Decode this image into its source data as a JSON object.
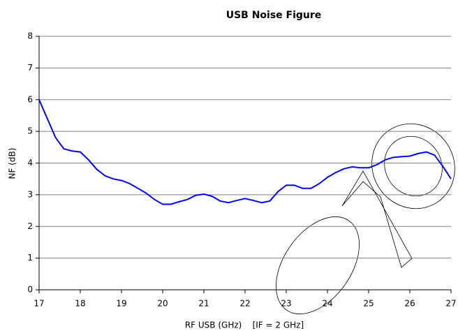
{
  "chart_data": {
    "type": "line",
    "title": "USB Noise Figure",
    "x_label": "RF USB (GHz)    [IF = 2 GHz]",
    "y_label": "NF (dB)",
    "xlim": [
      17,
      27
    ],
    "xticks": [
      17,
      18,
      19,
      20,
      21,
      22,
      23,
      24,
      25,
      26,
      27
    ],
    "ylim": [
      0,
      8
    ],
    "yticks": [
      0,
      1,
      2,
      3,
      4,
      5,
      6,
      7,
      8
    ],
    "grid": true,
    "series": [
      {
        "color": "#0000ff",
        "x": [
          17.0,
          17.2,
          17.4,
          17.6,
          17.8,
          18.0,
          18.2,
          18.4,
          18.6,
          18.8,
          19.0,
          19.2,
          19.4,
          19.6,
          19.8,
          20.0,
          20.2,
          20.4,
          20.6,
          20.8,
          21.0,
          21.2,
          21.4,
          21.6,
          21.8,
          22.0,
          22.2,
          22.4,
          22.6,
          22.8,
          23.0,
          23.2,
          23.4,
          23.6,
          23.8,
          24.0,
          24.2,
          24.4,
          24.6,
          24.8,
          25.0,
          25.2,
          25.4,
          25.6,
          25.8,
          26.0,
          26.2,
          26.4,
          26.6,
          26.8,
          27.0
        ],
        "values": [
          6.0,
          5.4,
          4.8,
          4.45,
          4.38,
          4.35,
          4.1,
          3.8,
          3.6,
          3.5,
          3.45,
          3.35,
          3.2,
          3.05,
          2.85,
          2.7,
          2.7,
          2.78,
          2.85,
          2.98,
          3.02,
          2.95,
          2.8,
          2.75,
          2.82,
          2.88,
          2.82,
          2.75,
          2.8,
          3.1,
          3.3,
          3.3,
          3.2,
          3.2,
          3.35,
          3.55,
          3.7,
          3.82,
          3.88,
          3.85,
          3.85,
          3.95,
          4.1,
          4.18,
          4.2,
          4.22,
          4.3,
          4.35,
          4.25,
          3.9,
          3.5
        ]
      }
    ]
  }
}
